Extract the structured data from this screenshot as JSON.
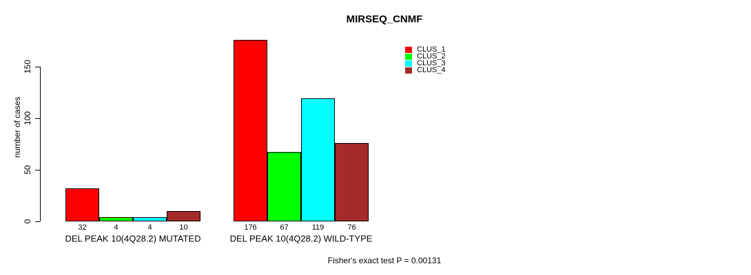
{
  "chart_data": {
    "type": "bar",
    "title": "MIRSEQ_CNMF",
    "ylabel": "number of cases",
    "xlabel": "",
    "categories": [
      "DEL PEAK 10(4Q28.2) MUTATED",
      "DEL PEAK 10(4Q28.2) WILD-TYPE"
    ],
    "series": [
      {
        "name": "CLUS_1",
        "color": "#FF0000",
        "values": [
          32,
          176
        ]
      },
      {
        "name": "CLUS_2",
        "color": "#00FF00",
        "values": [
          4,
          67
        ]
      },
      {
        "name": "CLUS_3",
        "color": "#00FFFF",
        "values": [
          4,
          119
        ]
      },
      {
        "name": "CLUS_4",
        "color": "#A52A2A",
        "values": [
          10,
          76
        ]
      }
    ],
    "yticks": [
      0,
      50,
      100,
      150
    ],
    "ylim": [
      0,
      176
    ],
    "show_values": true,
    "annotation": "Fisher's exact test P = 0.00131",
    "legend_position": "top-right",
    "grid": false,
    "background_color": "#FFFFFF",
    "bar_border_color": "#000000"
  }
}
